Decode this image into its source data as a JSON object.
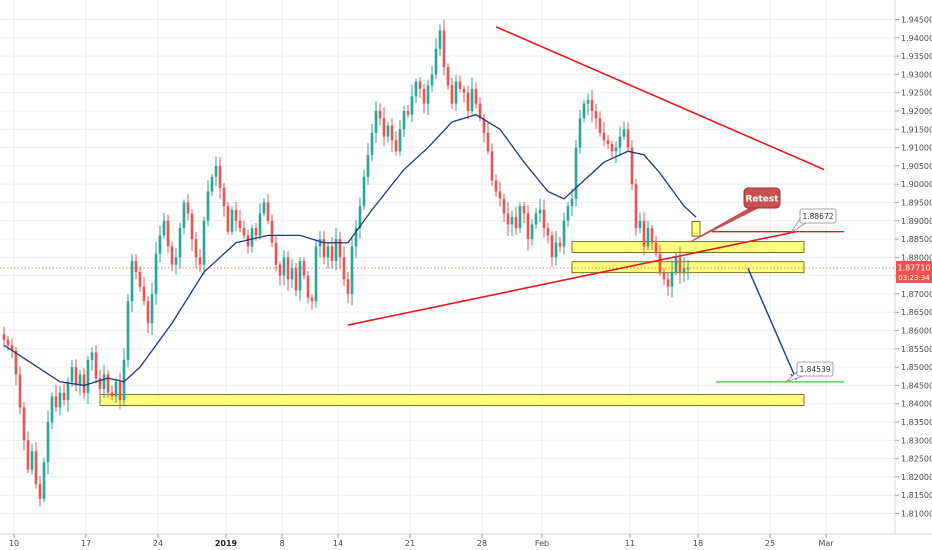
{
  "chart_data": {
    "type": "candlestick",
    "title": "",
    "xlabel": "",
    "ylabel": "",
    "ylim": [
      1.805,
      1.945
    ],
    "y_ticks": [
      "1.81000",
      "1.81500",
      "1.82000",
      "1.82500",
      "1.83000",
      "1.83500",
      "1.84000",
      "1.84500",
      "1.85000",
      "1.85500",
      "1.86000",
      "1.86500",
      "1.87000",
      "1.87500",
      "1.88000",
      "1.88500",
      "1.89000",
      "1.89500",
      "1.90000",
      "1.90500",
      "1.91000",
      "1.91500",
      "1.92000",
      "1.92500",
      "1.93000",
      "1.93500",
      "1.94000",
      "1.94500"
    ],
    "x_ticks": [
      {
        "label": "10",
        "bold": false
      },
      {
        "label": "17",
        "bold": false
      },
      {
        "label": "24",
        "bold": false
      },
      {
        "label": "2019",
        "bold": true
      },
      {
        "label": "8",
        "bold": false
      },
      {
        "label": "14",
        "bold": false
      },
      {
        "label": "21",
        "bold": false
      },
      {
        "label": "28",
        "bold": false
      },
      {
        "label": "Feb",
        "bold": false
      },
      {
        "label": "11",
        "bold": false
      },
      {
        "label": "18",
        "bold": false
      },
      {
        "label": "25",
        "bold": false
      },
      {
        "label": "Mar",
        "bold": false
      }
    ],
    "grid": true,
    "colors": {
      "up": "#26a69a",
      "down": "#ef5350",
      "moving_average": "#1f3a7a",
      "trendline": "#e8191d",
      "zone_fill": "#ffff66",
      "zone_stroke": "#555500",
      "current_price": "#ef5350",
      "target_line": "#66d466",
      "projection_arrow": "#1f3a9a",
      "grid": "#eceff2",
      "label_callout": "#c75050"
    },
    "closes": [
      1.8575,
      1.856,
      1.8545,
      1.848,
      1.839,
      1.83,
      1.822,
      1.827,
      1.818,
      1.814,
      1.824,
      1.835,
      1.842,
      1.839,
      1.843,
      1.841,
      1.846,
      1.85,
      1.845,
      1.848,
      1.843,
      1.852,
      1.854,
      1.847,
      1.844,
      1.848,
      1.843,
      1.842,
      1.846,
      1.841,
      1.852,
      1.868,
      1.879,
      1.876,
      1.872,
      1.868,
      1.862,
      1.87,
      1.881,
      1.886,
      1.89,
      1.883,
      1.878,
      1.88,
      1.888,
      1.895,
      1.892,
      1.885,
      1.88,
      1.878,
      1.89,
      1.898,
      1.902,
      1.905,
      1.899,
      1.894,
      1.887,
      1.893,
      1.89,
      1.888,
      1.886,
      1.883,
      1.888,
      1.886,
      1.892,
      1.895,
      1.89,
      1.884,
      1.878,
      1.875,
      1.88,
      1.874,
      1.877,
      1.871,
      1.879,
      1.875,
      1.869,
      1.868,
      1.883,
      1.885,
      1.88,
      1.883,
      1.879,
      1.885,
      1.88,
      1.874,
      1.87,
      1.883,
      1.888,
      1.894,
      1.902,
      1.908,
      1.914,
      1.92,
      1.918,
      1.913,
      1.916,
      1.912,
      1.909,
      1.915,
      1.92,
      1.919,
      1.924,
      1.928,
      1.926,
      1.922,
      1.927,
      1.93,
      1.937,
      1.942,
      1.932,
      1.927,
      1.922,
      1.928,
      1.926,
      1.925,
      1.92,
      1.926,
      1.922,
      1.918,
      1.914,
      1.909,
      1.901,
      1.898,
      1.896,
      1.892,
      1.889,
      1.891,
      1.888,
      1.894,
      1.892,
      1.885,
      1.889,
      1.892,
      1.893,
      1.888,
      1.886,
      1.88,
      1.884,
      1.883,
      1.89,
      1.894,
      1.896,
      1.91,
      1.918,
      1.922,
      1.923,
      1.92,
      1.918,
      1.914,
      1.912,
      1.911,
      1.909,
      1.91,
      1.913,
      1.915,
      1.91,
      1.9,
      1.888,
      1.89,
      1.883,
      1.888,
      1.884,
      1.881,
      1.876,
      1.874,
      1.872,
      1.876,
      1.88,
      1.876,
      1.877,
      1.877
    ],
    "moving_average_path": [
      [
        0,
        1.856
      ],
      [
        14,
        1.846
      ],
      [
        20,
        1.845
      ],
      [
        26,
        1.847
      ],
      [
        30,
        1.846
      ],
      [
        34,
        1.85
      ],
      [
        42,
        1.862
      ],
      [
        50,
        1.876
      ],
      [
        58,
        1.884
      ],
      [
        66,
        1.886
      ],
      [
        74,
        1.886
      ],
      [
        80,
        1.884
      ],
      [
        86,
        1.884
      ],
      [
        92,
        1.893
      ],
      [
        100,
        1.904
      ],
      [
        106,
        1.91
      ],
      [
        112,
        1.917
      ],
      [
        118,
        1.919
      ],
      [
        124,
        1.915
      ],
      [
        130,
        1.906
      ],
      [
        136,
        1.898
      ],
      [
        140,
        1.896
      ],
      [
        144,
        1.9
      ],
      [
        150,
        1.906
      ],
      [
        156,
        1.909
      ],
      [
        160,
        1.908
      ],
      [
        164,
        1.903
      ],
      [
        170,
        1.894
      ],
      [
        173,
        1.891
      ]
    ],
    "trendlines": [
      {
        "from": [
          123,
          1.943
        ],
        "to": [
          205,
          1.904
        ]
      },
      {
        "from": [
          86,
          1.8615
        ],
        "to": [
          198,
          1.887
        ]
      }
    ],
    "resistance_line": {
      "from": [
        177,
        1.887
      ],
      "to": [
        210,
        1.887
      ]
    },
    "target_line": {
      "from": [
        178,
        1.846
      ],
      "to": [
        210,
        1.846
      ]
    },
    "zones": [
      {
        "x_from": 24,
        "x_to": 200,
        "y_low": 1.8395,
        "y_high": 1.8425
      },
      {
        "x_from": 142,
        "x_to": 200,
        "y_low": 1.8813,
        "y_high": 1.8843
      },
      {
        "x_from": 142,
        "x_to": 200,
        "y_low": 1.8758,
        "y_high": 1.8788
      },
      {
        "x_from": 172,
        "x_to": 174,
        "y_low": 1.8858,
        "y_high": 1.8898
      }
    ],
    "projection_arrow": {
      "from": [
        186,
        1.877
      ],
      "to": [
        198,
        1.8468
      ]
    },
    "annotations": [
      {
        "text": "Retest",
        "kind": "callout"
      },
      {
        "text": "1.88672",
        "kind": "price-label"
      },
      {
        "text": "1.84539",
        "kind": "price-label"
      }
    ],
    "current_price": {
      "value": "1.87710",
      "countdown": "03:23:34",
      "level": 1.8771
    }
  }
}
